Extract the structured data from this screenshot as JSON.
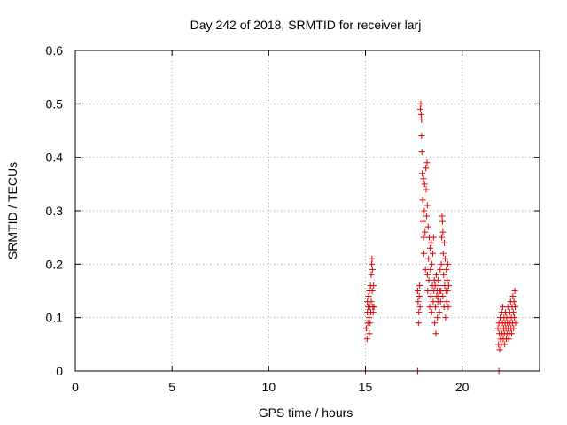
{
  "chart_data": {
    "type": "scatter",
    "title": "Day 242 of 2018, SRMTID for receiver larj",
    "xlabel": "GPS time / hours",
    "ylabel": "SRMTID / TECUs",
    "xlim": [
      0,
      24
    ],
    "ylim": [
      0,
      0.6
    ],
    "x_ticks": [
      0,
      5,
      10,
      15,
      20
    ],
    "y_ticks": [
      0,
      0.1,
      0.2,
      0.3,
      0.4,
      0.5,
      0.6
    ],
    "x_tick_labels": [
      "0",
      "5",
      "10",
      "15",
      "20"
    ],
    "y_tick_labels": [
      "0",
      "0.1",
      "0.2",
      "0.3",
      "0.4",
      "0.5",
      "0.6"
    ],
    "grid": true,
    "marker": "+",
    "color": "#e00000",
    "series": [
      {
        "name": "SRMTID",
        "points": [
          [
            15.0,
            0.0
          ],
          [
            17.7,
            0.0
          ],
          [
            21.9,
            0.0
          ],
          [
            15.05,
            0.08
          ],
          [
            15.08,
            0.06
          ],
          [
            15.1,
            0.11
          ],
          [
            15.1,
            0.13
          ],
          [
            15.12,
            0.09
          ],
          [
            15.14,
            0.12
          ],
          [
            15.16,
            0.14
          ],
          [
            15.18,
            0.1
          ],
          [
            15.2,
            0.07
          ],
          [
            15.2,
            0.15
          ],
          [
            15.22,
            0.12
          ],
          [
            15.24,
            0.09
          ],
          [
            15.26,
            0.16
          ],
          [
            15.28,
            0.11
          ],
          [
            15.3,
            0.13
          ],
          [
            15.3,
            0.18
          ],
          [
            15.32,
            0.2
          ],
          [
            15.34,
            0.21
          ],
          [
            15.35,
            0.15
          ],
          [
            15.36,
            0.19
          ],
          [
            15.38,
            0.12
          ],
          [
            15.4,
            0.11
          ],
          [
            15.42,
            0.16
          ],
          [
            15.44,
            0.12
          ],
          [
            17.7,
            0.15
          ],
          [
            17.72,
            0.13
          ],
          [
            17.74,
            0.09
          ],
          [
            17.76,
            0.11
          ],
          [
            17.78,
            0.14
          ],
          [
            17.8,
            0.16
          ],
          [
            17.82,
            0.12
          ],
          [
            17.84,
            0.49
          ],
          [
            17.86,
            0.5
          ],
          [
            17.88,
            0.48
          ],
          [
            17.9,
            0.47
          ],
          [
            17.9,
            0.44
          ],
          [
            17.92,
            0.41
          ],
          [
            17.94,
            0.37
          ],
          [
            17.96,
            0.32
          ],
          [
            17.98,
            0.28
          ],
          [
            18.0,
            0.25
          ],
          [
            18.0,
            0.36
          ],
          [
            18.02,
            0.22
          ],
          [
            18.04,
            0.3
          ],
          [
            18.06,
            0.35
          ],
          [
            18.08,
            0.26
          ],
          [
            18.1,
            0.19
          ],
          [
            18.12,
            0.38
          ],
          [
            18.14,
            0.34
          ],
          [
            18.16,
            0.29
          ],
          [
            18.18,
            0.39
          ],
          [
            18.2,
            0.31
          ],
          [
            18.2,
            0.18
          ],
          [
            18.22,
            0.15
          ],
          [
            18.24,
            0.27
          ],
          [
            18.26,
            0.21
          ],
          [
            18.28,
            0.17
          ],
          [
            18.3,
            0.25
          ],
          [
            18.32,
            0.12
          ],
          [
            18.34,
            0.23
          ],
          [
            18.36,
            0.19
          ],
          [
            18.38,
            0.14
          ],
          [
            18.4,
            0.24
          ],
          [
            18.42,
            0.11
          ],
          [
            18.44,
            0.2
          ],
          [
            18.46,
            0.16
          ],
          [
            18.48,
            0.22
          ],
          [
            18.5,
            0.13
          ],
          [
            18.52,
            0.25
          ],
          [
            18.54,
            0.15
          ],
          [
            18.56,
            0.17
          ],
          [
            18.58,
            0.09
          ],
          [
            18.6,
            0.16
          ],
          [
            18.62,
            0.12
          ],
          [
            18.64,
            0.07
          ],
          [
            18.66,
            0.18
          ],
          [
            18.68,
            0.14
          ],
          [
            18.7,
            0.15
          ],
          [
            18.72,
            0.1
          ],
          [
            18.74,
            0.13
          ],
          [
            18.76,
            0.17
          ],
          [
            18.78,
            0.14
          ],
          [
            18.8,
            0.16
          ],
          [
            18.82,
            0.11
          ],
          [
            18.84,
            0.15
          ],
          [
            18.86,
            0.19
          ],
          [
            18.88,
            0.13
          ],
          [
            18.9,
            0.15
          ],
          [
            18.92,
            0.2
          ],
          [
            18.94,
            0.25
          ],
          [
            18.96,
            0.29
          ],
          [
            18.98,
            0.28
          ],
          [
            19.0,
            0.26
          ],
          [
            19.0,
            0.14
          ],
          [
            19.02,
            0.22
          ],
          [
            19.04,
            0.18
          ],
          [
            19.06,
            0.12
          ],
          [
            19.08,
            0.24
          ],
          [
            19.1,
            0.16
          ],
          [
            19.12,
            0.21
          ],
          [
            19.14,
            0.1
          ],
          [
            19.16,
            0.15
          ],
          [
            19.18,
            0.19
          ],
          [
            19.2,
            0.13
          ],
          [
            19.22,
            0.17
          ],
          [
            19.24,
            0.15
          ],
          [
            19.26,
            0.2
          ],
          [
            19.28,
            0.12
          ],
          [
            19.3,
            0.16
          ],
          [
            21.85,
            0.08
          ],
          [
            21.88,
            0.05
          ],
          [
            21.9,
            0.09
          ],
          [
            21.92,
            0.07
          ],
          [
            21.94,
            0.04
          ],
          [
            21.96,
            0.1
          ],
          [
            21.98,
            0.06
          ],
          [
            22.0,
            0.08
          ],
          [
            22.02,
            0.05
          ],
          [
            22.04,
            0.11
          ],
          [
            22.06,
            0.07
          ],
          [
            22.08,
            0.09
          ],
          [
            22.1,
            0.12
          ],
          [
            22.12,
            0.06
          ],
          [
            22.14,
            0.08
          ],
          [
            22.16,
            0.1
          ],
          [
            22.18,
            0.07
          ],
          [
            22.2,
            0.05
          ],
          [
            22.22,
            0.09
          ],
          [
            22.24,
            0.11
          ],
          [
            22.26,
            0.08
          ],
          [
            22.28,
            0.06
          ],
          [
            22.3,
            0.1
          ],
          [
            22.32,
            0.07
          ],
          [
            22.34,
            0.09
          ],
          [
            22.36,
            0.12
          ],
          [
            22.38,
            0.08
          ],
          [
            22.4,
            0.06
          ],
          [
            22.42,
            0.1
          ],
          [
            22.44,
            0.07
          ],
          [
            22.46,
            0.11
          ],
          [
            22.48,
            0.09
          ],
          [
            22.5,
            0.13
          ],
          [
            22.52,
            0.08
          ],
          [
            22.54,
            0.1
          ],
          [
            22.56,
            0.07
          ],
          [
            22.58,
            0.12
          ],
          [
            22.6,
            0.09
          ],
          [
            22.62,
            0.14
          ],
          [
            22.64,
            0.11
          ],
          [
            22.66,
            0.08
          ],
          [
            22.68,
            0.13
          ],
          [
            22.7,
            0.1
          ],
          [
            22.72,
            0.15
          ],
          [
            22.74,
            0.12
          ],
          [
            22.76,
            0.09
          ]
        ]
      }
    ]
  }
}
